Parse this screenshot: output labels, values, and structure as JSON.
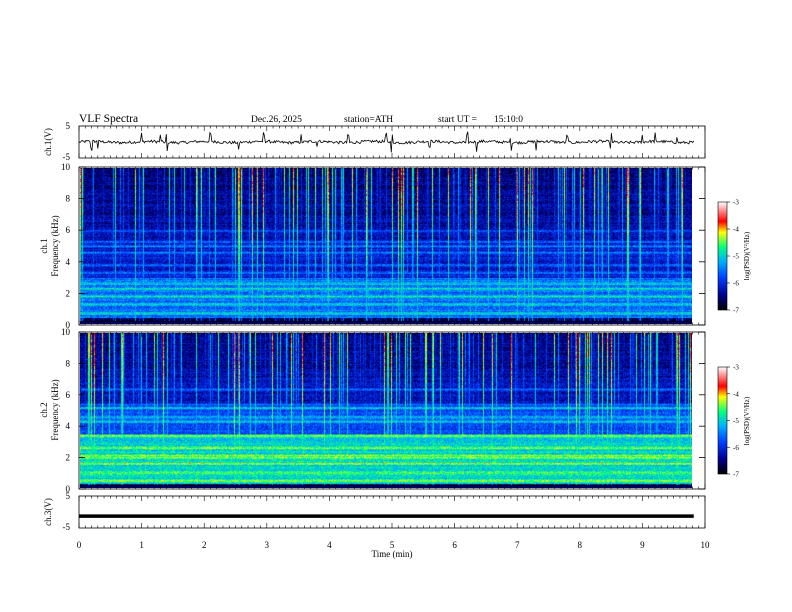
{
  "header": {
    "title": "VLF Spectra",
    "date": "Dec.26, 2025",
    "station": "station=ATH",
    "start_ut": "start UT =",
    "start_time": "15:10:0"
  },
  "chart_data": [
    {
      "type": "line",
      "name": "ch1-waveform",
      "ylabel": "ch.1(V)",
      "ylim": [
        -5,
        5
      ],
      "yticks": [
        "5",
        "-5"
      ],
      "xlim": [
        0,
        10
      ],
      "baseline": 0,
      "spike_times": [
        0.2,
        0.3,
        1.0,
        1.3,
        1.4,
        2.1,
        2.55,
        2.95,
        3.55,
        3.8,
        4.3,
        4.9,
        5.0,
        5.6,
        6.2,
        6.35,
        6.9,
        7.3,
        7.8,
        8.5,
        9.0,
        9.2,
        9.55
      ]
    },
    {
      "type": "heatmap",
      "name": "ch1-spectrogram",
      "ylabel": "Frequency (kHz)",
      "channel_label": "ch.1",
      "ylim": [
        0,
        10
      ],
      "yticks": [
        "0",
        "2",
        "4",
        "6",
        "8",
        "10"
      ],
      "xlim": [
        0,
        9.82
      ],
      "bands_khz": [
        0.7,
        1.3,
        1.8,
        2.3,
        2.6,
        3.3,
        3.8,
        4.6,
        5.0,
        5.3,
        6.0
      ],
      "colorbar": {
        "label": "log(PSD)(V²/Hz)",
        "ticks": [
          "-3",
          "-4",
          "-5",
          "-6",
          "-7"
        ],
        "range": [
          -7,
          -3
        ]
      }
    },
    {
      "type": "heatmap",
      "name": "ch2-spectrogram",
      "ylabel": "Frequency (kHz)",
      "channel_label": "ch.2",
      "ylim": [
        0,
        10
      ],
      "yticks": [
        "0",
        "2",
        "4",
        "6",
        "8",
        "10"
      ],
      "xlim": [
        0,
        9.82
      ],
      "bands_khz": [
        0.5,
        1.0,
        1.6,
        2.0,
        2.1,
        2.6,
        3.4,
        4.3,
        4.6,
        5.2,
        6.4
      ],
      "colorbar": {
        "label": "log(PSD)(V²/Hz)",
        "ticks": [
          "-3",
          "-4",
          "-5",
          "-6",
          "-7"
        ],
        "range": [
          -7,
          -3
        ]
      }
    },
    {
      "type": "line",
      "name": "ch3-waveform",
      "ylabel": "ch.3(V)",
      "ylim": [
        -5,
        5
      ],
      "yticks": [
        "5",
        "-5"
      ],
      "xlim": [
        0,
        10
      ],
      "baseline": -1.3
    }
  ],
  "xaxis": {
    "label": "Time (min)",
    "ticks": [
      "0",
      "1",
      "2",
      "3",
      "4",
      "5",
      "6",
      "7",
      "8",
      "9",
      "10"
    ]
  },
  "colors": {
    "axis": "#000000",
    "trace": "#000000",
    "colormap": [
      "#000000",
      "#000090",
      "#0040ff",
      "#00b0ff",
      "#00ff80",
      "#ffff00",
      "#ff0000",
      "#ffffff"
    ]
  }
}
